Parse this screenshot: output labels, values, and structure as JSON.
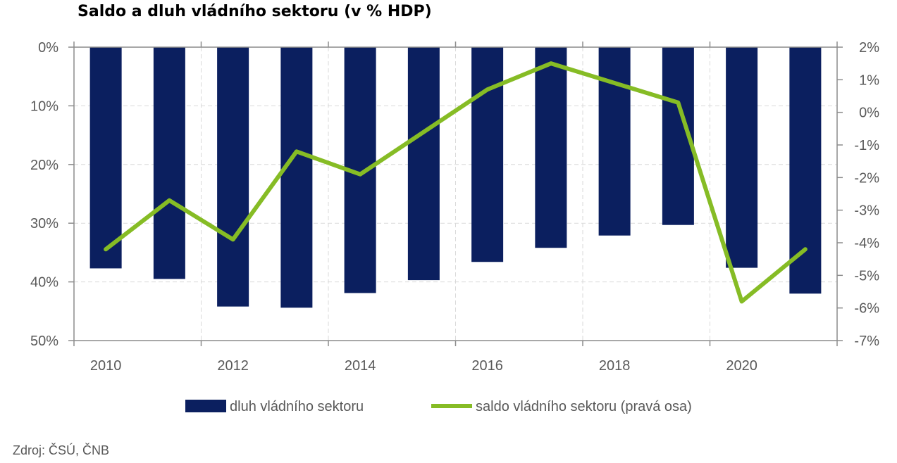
{
  "title": "Saldo a dluh vládního sektoru (v % HDP)",
  "source": "Zdroj: ČSÚ, ČNB",
  "colors": {
    "bar": "#0b1f5f",
    "line": "#86bc25",
    "axis": "#8c8c8c",
    "grid": "#d9d9d9",
    "text": "#595959"
  },
  "chart_data": {
    "type": "bar",
    "categories": [
      2010,
      2011,
      2012,
      2013,
      2014,
      2015,
      2016,
      2017,
      2018,
      2019,
      2020,
      2021
    ],
    "x_tick_labels": [
      "2010",
      "2012",
      "2014",
      "2016",
      "2018",
      "2020"
    ],
    "y_left_ticks": [
      "0%",
      "10%",
      "20%",
      "30%",
      "40%",
      "50%"
    ],
    "y_right_ticks": [
      "2%",
      "1%",
      "0%",
      "-1%",
      "-2%",
      "-3%",
      "-4%",
      "-5%",
      "-6%",
      "-7%"
    ],
    "ylim_left": [
      0,
      50
    ],
    "ylim_right": [
      -7,
      2
    ],
    "left_axis_inverted": true,
    "grid": true,
    "legend_position": "bottom",
    "series": [
      {
        "name": "dluh vládního sektoru",
        "type": "bar",
        "axis": "left",
        "values": [
          37.7,
          39.5,
          44.2,
          44.4,
          41.9,
          39.7,
          36.6,
          34.2,
          32.1,
          30.3,
          37.6,
          42.0
        ]
      },
      {
        "name": "saldo vládního sektoru (pravá osa)",
        "type": "line",
        "axis": "right",
        "values": [
          -4.2,
          -2.7,
          -3.9,
          -1.2,
          -1.9,
          -0.6,
          0.7,
          1.5,
          0.9,
          0.3,
          -5.8,
          -4.2
        ]
      }
    ]
  }
}
